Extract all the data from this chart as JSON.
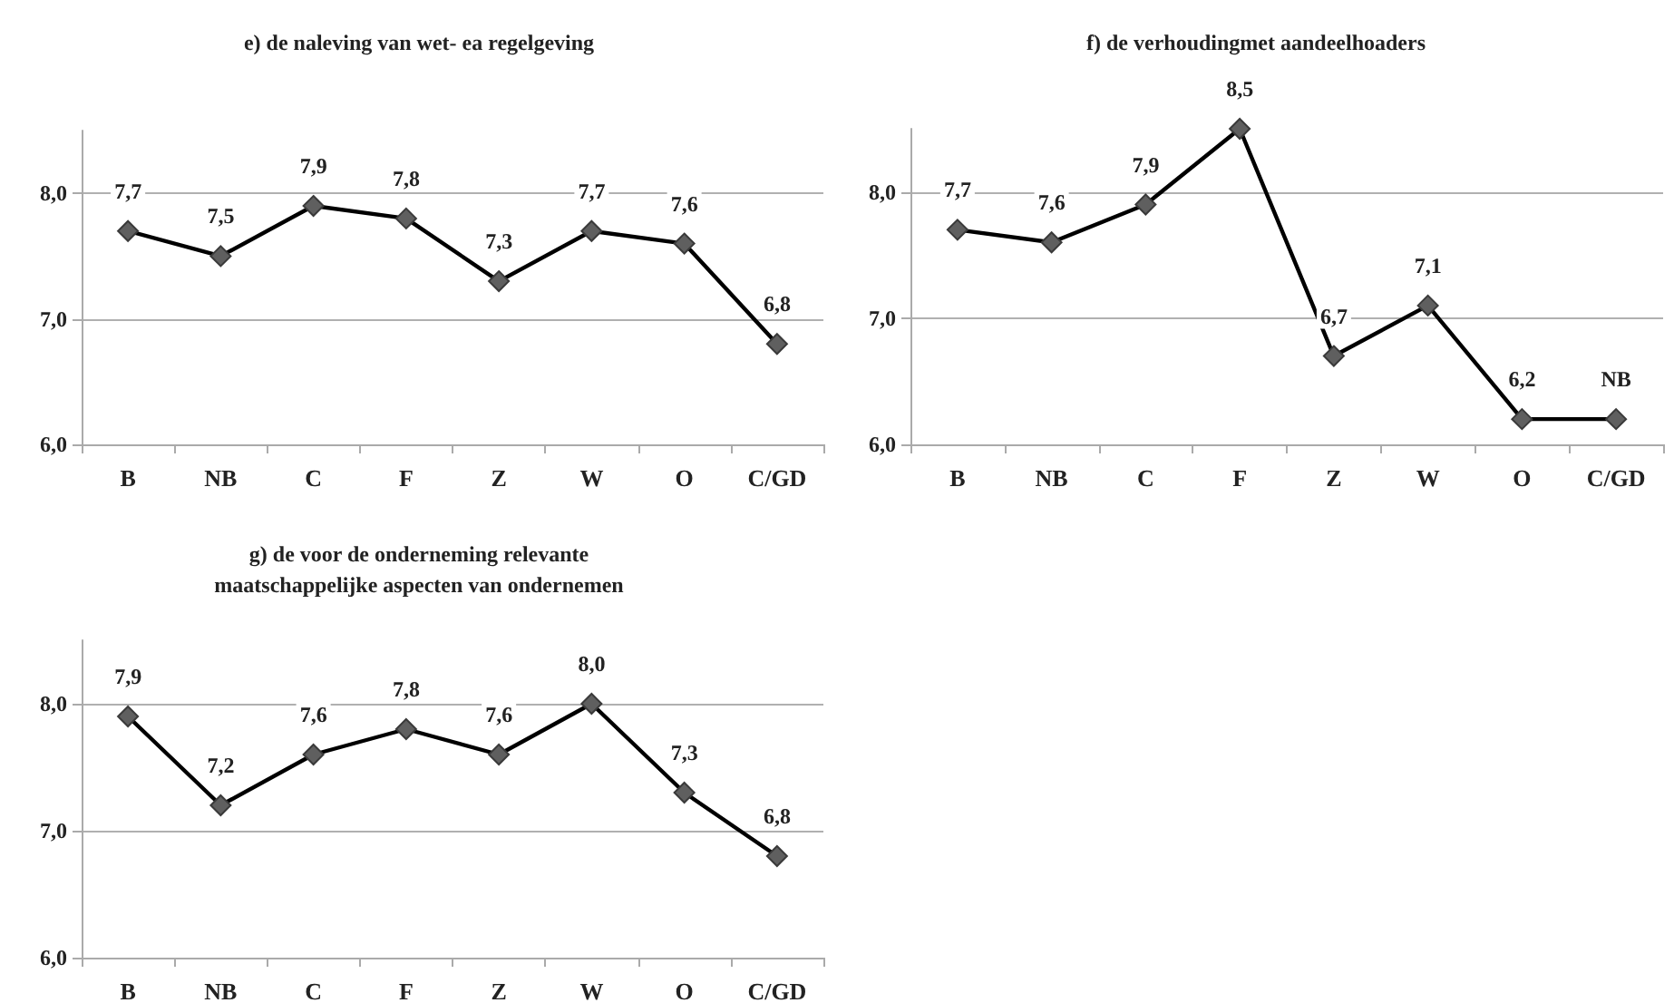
{
  "chart_data": [
    {
      "type": "line",
      "title": "e) de naleving van wet- ea regelgeving",
      "categories": [
        "B",
        "NB",
        "C",
        "F",
        "Z",
        "W",
        "O",
        "C/GD"
      ],
      "series": [
        {
          "color": "#000000",
          "values": [
            7.7,
            7.5,
            7.9,
            7.8,
            7.3,
            7.7,
            7.6,
            6.8
          ],
          "value_labels": [
            "7,7",
            "7,5",
            "7,9",
            "7,8",
            "7,3",
            "7,7",
            "7,6",
            "6,8"
          ]
        }
      ],
      "ylim": [
        6,
        8.5
      ],
      "yticks": [
        {
          "value": 6,
          "label": "6,0"
        },
        {
          "value": 7,
          "label": "7,0"
        },
        {
          "value": 8,
          "label": "8,0"
        }
      ],
      "grid": "y",
      "marker": "diamond",
      "line_style": "solid"
    },
    {
      "type": "line",
      "title": "f) de verhoudingmet aandeelhoaders",
      "categories": [
        "B",
        "NB",
        "C",
        "F",
        "Z",
        "W",
        "O",
        "C/GD"
      ],
      "series": [
        {
          "color": "#000000",
          "values": [
            7.7,
            7.6,
            7.9,
            8.5,
            6.7,
            7.1,
            6.2,
            6.2
          ],
          "value_labels": [
            "7,7",
            "7,6",
            "7,9",
            "8,5",
            "6,7",
            "7,1",
            "6,2",
            "NB"
          ]
        }
      ],
      "ylim": [
        6,
        8.5
      ],
      "yticks": [
        {
          "value": 6,
          "label": "6,0"
        },
        {
          "value": 7,
          "label": "7,0"
        },
        {
          "value": 8,
          "label": "8,0"
        }
      ],
      "grid": "y",
      "marker": "diamond",
      "line_style": "solid"
    },
    {
      "type": "line",
      "title": "g) de voor de onderneming relevante\nmaatschappelijke aspecten van ondernemen",
      "categories": [
        "B",
        "NB",
        "C",
        "F",
        "Z",
        "W",
        "O",
        "C/GD"
      ],
      "series": [
        {
          "color": "#000000",
          "values": [
            7.9,
            7.2,
            7.6,
            7.8,
            7.6,
            8.0,
            7.3,
            6.8
          ],
          "value_labels": [
            "7,9",
            "7,2",
            "7,6",
            "7,8",
            "7,6",
            "8,0",
            "7,3",
            "6,8"
          ]
        }
      ],
      "ylim": [
        6,
        8.5
      ],
      "yticks": [
        {
          "value": 6,
          "label": "6,0"
        },
        {
          "value": 7,
          "label": "7,0"
        },
        {
          "value": 8,
          "label": "8,0"
        }
      ],
      "grid": "y",
      "marker": "diamond",
      "line_style": "solid"
    }
  ]
}
